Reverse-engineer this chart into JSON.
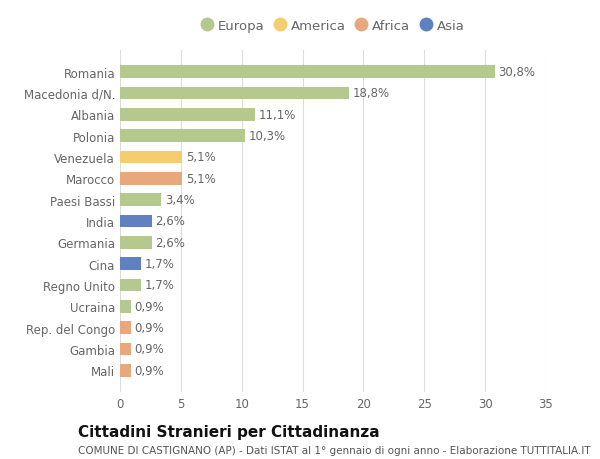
{
  "categories": [
    "Romania",
    "Macedonia d/N.",
    "Albania",
    "Polonia",
    "Venezuela",
    "Marocco",
    "Paesi Bassi",
    "India",
    "Germania",
    "Cina",
    "Regno Unito",
    "Ucraina",
    "Rep. del Congo",
    "Gambia",
    "Mali"
  ],
  "values": [
    30.8,
    18.8,
    11.1,
    10.3,
    5.1,
    5.1,
    3.4,
    2.6,
    2.6,
    1.7,
    1.7,
    0.9,
    0.9,
    0.9,
    0.9
  ],
  "labels": [
    "30,8%",
    "18,8%",
    "11,1%",
    "10,3%",
    "5,1%",
    "5,1%",
    "3,4%",
    "2,6%",
    "2,6%",
    "1,7%",
    "1,7%",
    "0,9%",
    "0,9%",
    "0,9%",
    "0,9%"
  ],
  "colors": [
    "#b5c98e",
    "#b5c98e",
    "#b5c98e",
    "#b5c98e",
    "#f5cc6e",
    "#e8a87c",
    "#b5c98e",
    "#6080c0",
    "#b5c98e",
    "#6080c0",
    "#b5c98e",
    "#b5c98e",
    "#e8a87c",
    "#e8a87c",
    "#e8a87c"
  ],
  "legend_labels": [
    "Europa",
    "America",
    "Africa",
    "Asia"
  ],
  "legend_colors": [
    "#b5c98e",
    "#f5cc6e",
    "#e8a87c",
    "#6080c0"
  ],
  "xlim": [
    0,
    35
  ],
  "xticks": [
    0,
    5,
    10,
    15,
    20,
    25,
    30,
    35
  ],
  "title": "Cittadini Stranieri per Cittadinanza",
  "subtitle": "COMUNE DI CASTIGNANO (AP) - Dati ISTAT al 1° gennaio di ogni anno - Elaborazione TUTTITALIA.IT",
  "bg_color": "#ffffff",
  "grid_color": "#dddddd",
  "bar_height": 0.6,
  "label_fontsize": 8.5,
  "title_fontsize": 11,
  "subtitle_fontsize": 7.5,
  "tick_fontsize": 8.5,
  "legend_fontsize": 9.5
}
